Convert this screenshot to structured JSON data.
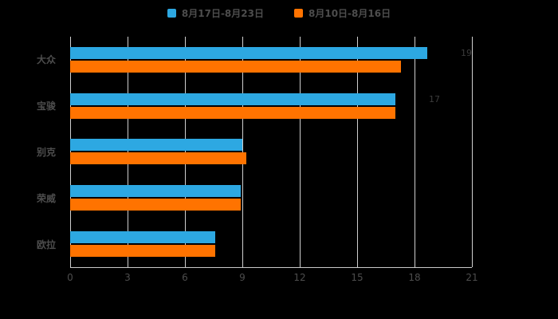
{
  "page": {
    "background": "#000000",
    "text_color": "#4d4d4d",
    "gridline_color": "#cfcfcf"
  },
  "chart_data": {
    "type": "bar",
    "orientation": "horizontal",
    "title": "",
    "xlabel": "",
    "ylabel": "",
    "categories": [
      "大众",
      "宝骏",
      "别克",
      "荣威",
      "欧拉"
    ],
    "series": [
      {
        "name": "8月17日-8月23日",
        "color": "#2DA8E2",
        "values": [
          19,
          17,
          9,
          8.9,
          7.6
        ],
        "value_labels": [
          "19",
          "17",
          "",
          "",
          ""
        ]
      },
      {
        "name": "8月10日-8月16日",
        "color": "#FF7300",
        "values": [
          17.3,
          17,
          9.2,
          8.9,
          7.6
        ],
        "value_labels": [
          "",
          "",
          "",
          "",
          ""
        ]
      }
    ],
    "xlim": [
      0,
      21
    ],
    "xticks": [
      0,
      3,
      6,
      9,
      12,
      15,
      18,
      21
    ],
    "grid": true,
    "legend_position": "top"
  }
}
